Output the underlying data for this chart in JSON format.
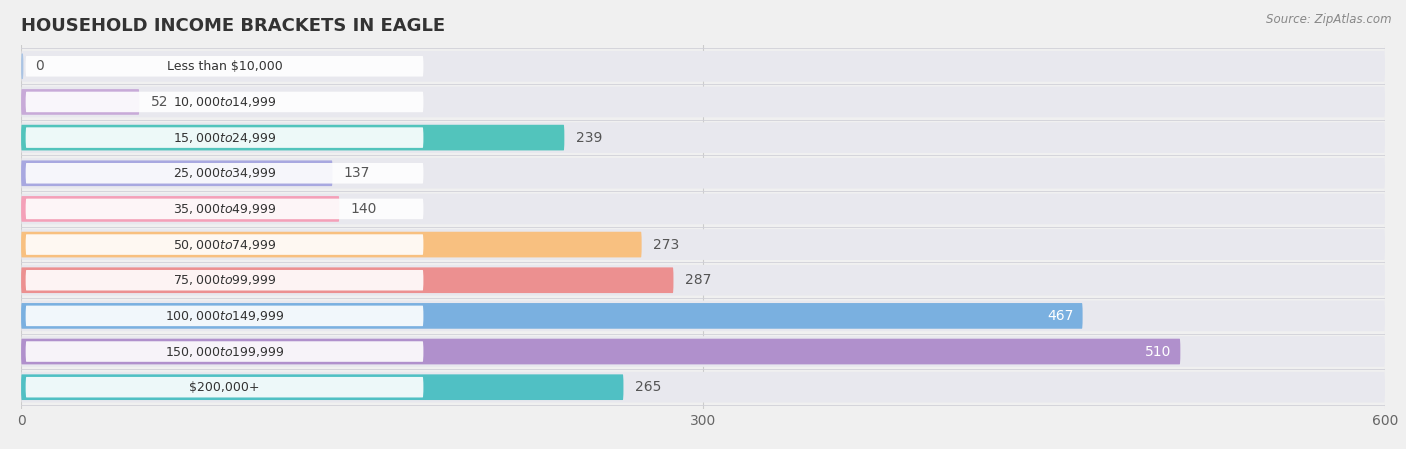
{
  "title": "HOUSEHOLD INCOME BRACKETS IN EAGLE",
  "source": "Source: ZipAtlas.com",
  "categories": [
    "Less than $10,000",
    "$10,000 to $14,999",
    "$15,000 to $24,999",
    "$25,000 to $34,999",
    "$35,000 to $49,999",
    "$50,000 to $74,999",
    "$75,000 to $99,999",
    "$100,000 to $149,999",
    "$150,000 to $199,999",
    "$200,000+"
  ],
  "values": [
    0,
    52,
    239,
    137,
    140,
    273,
    287,
    467,
    510,
    265
  ],
  "bar_colors": [
    "#aac4e4",
    "#c8aad8",
    "#52c4bc",
    "#a8a8e0",
    "#f4a0b8",
    "#f8c080",
    "#ec9090",
    "#7ab0e0",
    "#b090cc",
    "#50c0c4"
  ],
  "xlim": [
    0,
    600
  ],
  "xticks": [
    0,
    300,
    600
  ],
  "bg_color": "#f0f0f0",
  "row_bg_color": "#e8e8ec",
  "chart_bg": "#ffffff",
  "title_fontsize": 13,
  "bar_label_fontsize": 10,
  "pill_label_fontsize": 9
}
